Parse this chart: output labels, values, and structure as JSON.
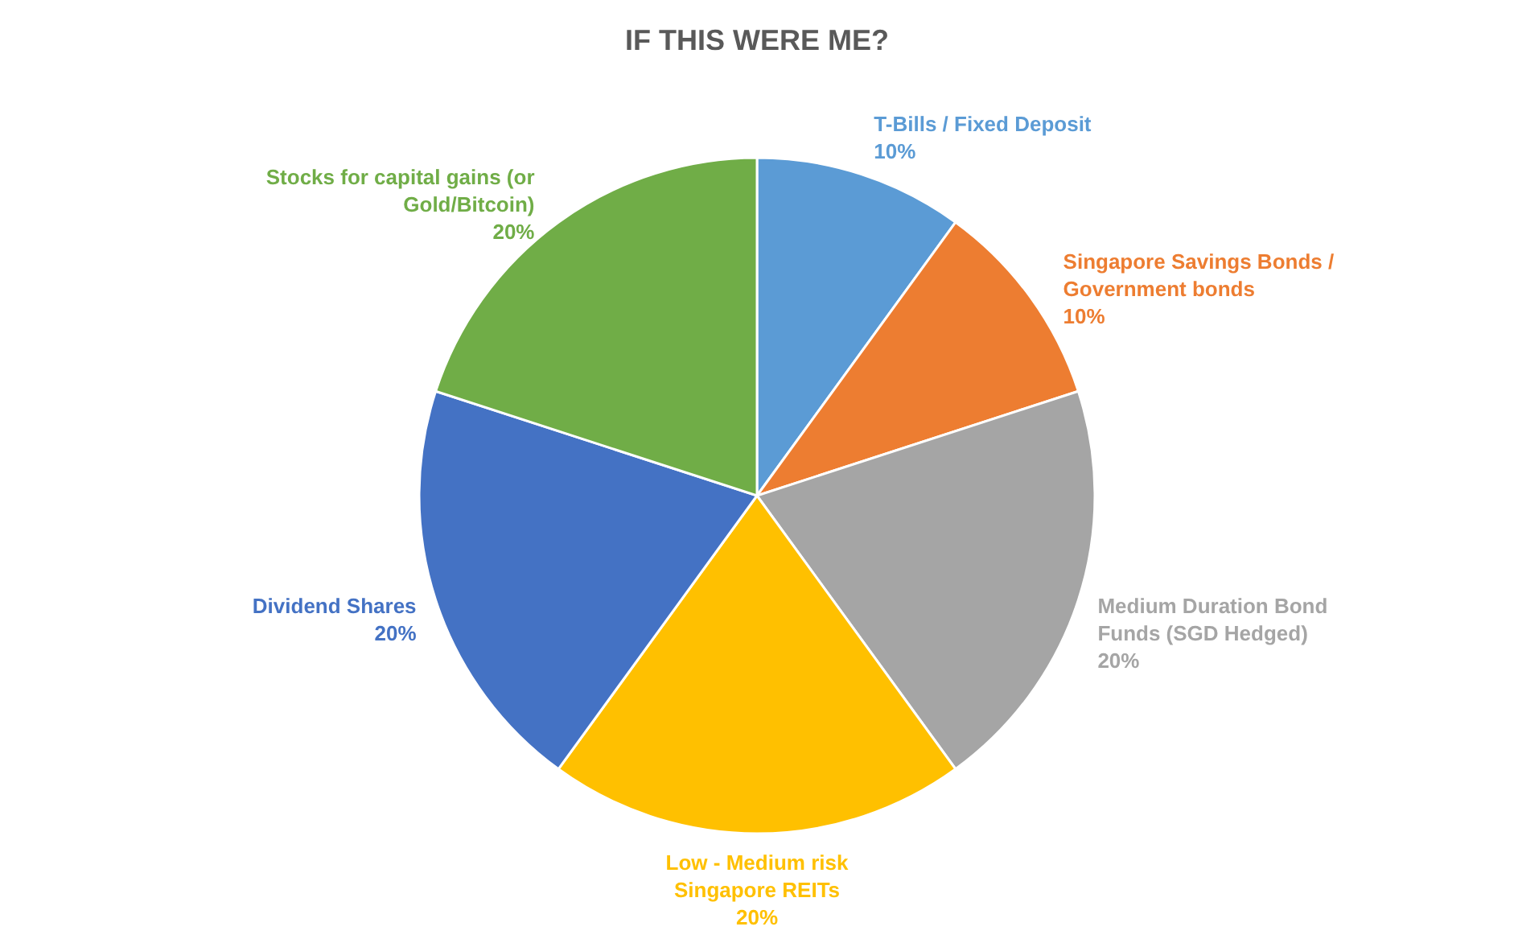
{
  "chart_data": {
    "type": "pie",
    "title": "IF THIS WERE ME?",
    "categories": [
      "T-Bills / Fixed Deposit",
      "Singapore Savings Bonds /\nGovernment bonds",
      "Medium Duration Bond\nFunds (SGD Hedged)",
      "Low - Medium risk\nSingapore REITs",
      "Dividend Shares",
      "Stocks for capital gains (or\nGold/Bitcoin)"
    ],
    "values": [
      10,
      10,
      20,
      20,
      20,
      20
    ],
    "colors": [
      "#5b9bd5",
      "#ed7d31",
      "#a5a5a5",
      "#ffc000",
      "#4472c4",
      "#70ad47"
    ],
    "value_labels": [
      "10%",
      "10%",
      "20%",
      "20%",
      "20%",
      "20%"
    ]
  }
}
